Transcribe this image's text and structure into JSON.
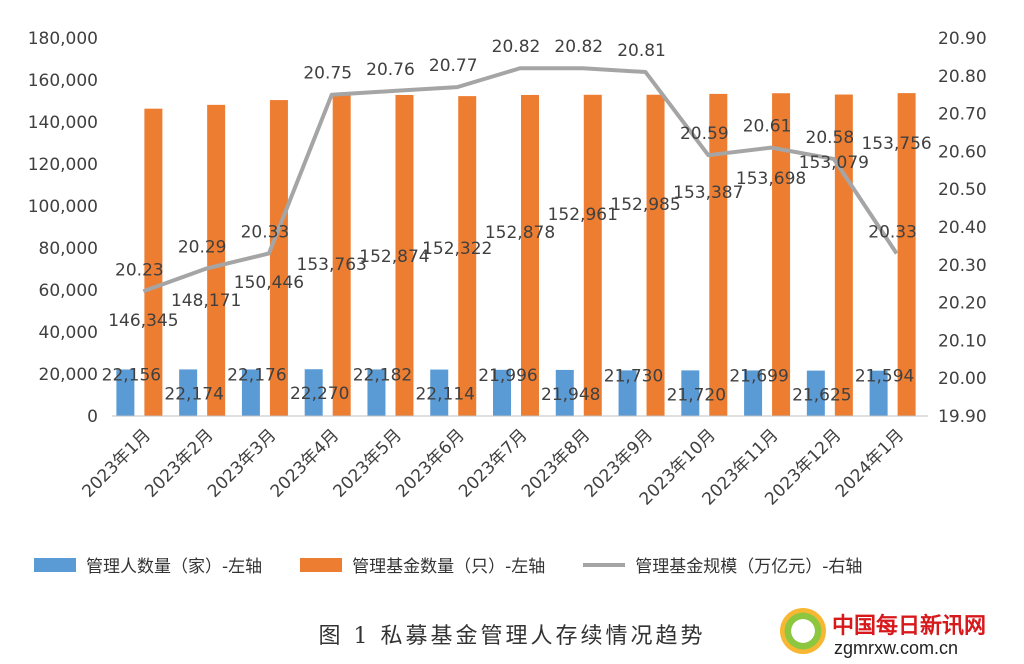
{
  "chart_data": {
    "type": "bar",
    "categories": [
      "2023年1月",
      "2023年2月",
      "2023年3月",
      "2023年4月",
      "2023年5月",
      "2023年6月",
      "2023年7月",
      "2023年8月",
      "2023年9月",
      "2023年10月",
      "2023年11月",
      "2023年12月",
      "2024年1月"
    ],
    "series": [
      {
        "name": "管理人数量（家）-左轴",
        "type": "bar",
        "axis": "left",
        "color": "#5b9bd5",
        "values": [
          22156,
          22174,
          22176,
          22270,
          22182,
          22114,
          21996,
          21948,
          21730,
          21720,
          21699,
          21625,
          21594
        ],
        "labels": [
          "22,156",
          "22,174",
          "22,176",
          "22,270",
          "22,182",
          "22,114",
          "21,996",
          "21,948",
          "21,730",
          "21,720",
          "21,699",
          "21,625",
          "21,594"
        ]
      },
      {
        "name": "管理基金数量（只）-左轴",
        "type": "bar",
        "axis": "left",
        "color": "#ed7d31",
        "values": [
          146345,
          148171,
          150446,
          153763,
          152874,
          152322,
          152878,
          152961,
          152985,
          153387,
          153698,
          153079,
          153756
        ],
        "labels": [
          "146,345",
          "148,171",
          "150,446",
          "153,763",
          "152,874",
          "152,322",
          "152,878",
          "152,961",
          "152,985",
          "153,387",
          "153,698",
          "153,079",
          "153,756"
        ]
      },
      {
        "name": "管理基金规模（万亿元）-右轴",
        "type": "line",
        "axis": "right",
        "color": "#a5a5a5",
        "values": [
          20.23,
          20.29,
          20.33,
          20.75,
          20.76,
          20.77,
          20.82,
          20.82,
          20.81,
          20.59,
          20.61,
          20.58,
          20.33
        ],
        "labels": [
          "20.23",
          "20.29",
          "20.33",
          "20.75",
          "20.76",
          "20.77",
          "20.82",
          "20.82",
          "20.81",
          "20.59",
          "20.61",
          "20.58",
          "20.33"
        ]
      }
    ],
    "yaxis_left": {
      "min": 0,
      "max": 180000,
      "step": 20000,
      "ticks": [
        "0",
        "20,000",
        "40,000",
        "60,000",
        "80,000",
        "100,000",
        "120,000",
        "140,000",
        "160,000",
        "180,000"
      ]
    },
    "yaxis_right": {
      "min": 19.9,
      "max": 20.9,
      "step": 0.1,
      "ticks": [
        "19.90",
        "20.00",
        "20.10",
        "20.20",
        "20.30",
        "20.40",
        "20.50",
        "20.60",
        "20.70",
        "20.80",
        "20.90"
      ]
    },
    "grid": false,
    "legend_position": "bottom",
    "title": "",
    "xlabel": "",
    "ylabel": ""
  },
  "caption": "图 1  私募基金管理人存续情况趋势",
  "watermark": {
    "cn": "中国每日新讯网",
    "en": "zgmrxw.com.cn"
  }
}
